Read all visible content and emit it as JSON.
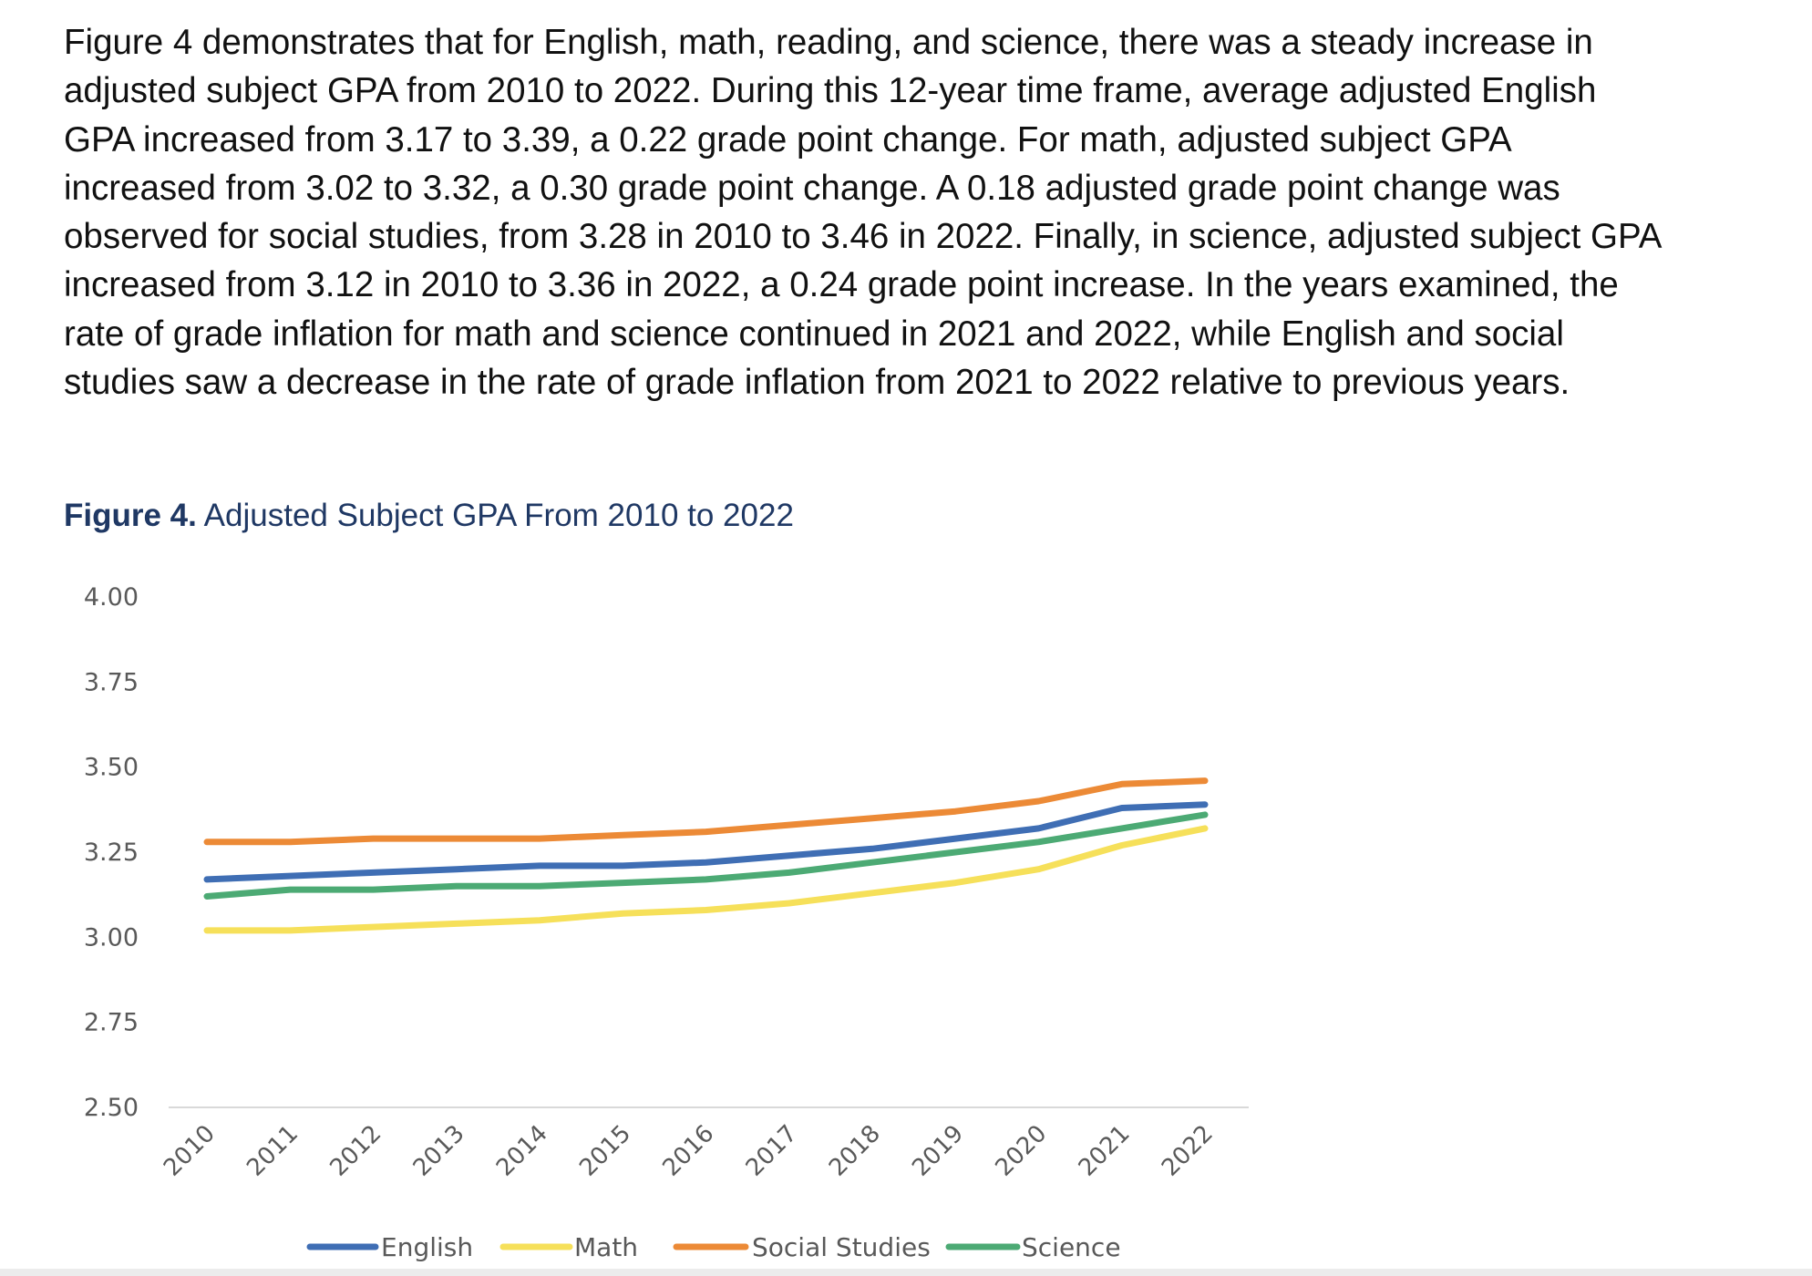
{
  "paragraph": {
    "text": "Figure 4 demonstrates that for English, math, reading, and science, there was a steady increase in adjusted subject GPA from 2010 to 2022. During this 12-year time frame, average adjusted English GPA increased from 3.17 to 3.39, a 0.22 grade point change. For math, adjusted subject GPA increased from 3.02 to 3.32, a 0.30 grade point change. A 0.18 adjusted grade point change was observed for social studies, from 3.28 in 2010 to 3.46 in 2022. Finally, in science, adjusted subject GPA increased from 3.12 in 2010 to 3.36 in 2022, a 0.24 grade point increase. In the years examined, the rate of grade inflation for math and science continued in 2021 and 2022, while English and social studies saw a decrease in the rate of grade inflation from 2021 to 2022 relative to previous years."
  },
  "figure": {
    "label": "Figure 4.",
    "title": " Adjusted Subject GPA From 2010 to 2022"
  },
  "chart_data": {
    "type": "line",
    "title": "Adjusted Subject GPA From 2010 to 2022",
    "xlabel": "",
    "ylabel": "",
    "categories": [
      "2010",
      "2011",
      "2012",
      "2013",
      "2014",
      "2015",
      "2016",
      "2017",
      "2018",
      "2019",
      "2020",
      "2021",
      "2022"
    ],
    "ylim": [
      2.5,
      4.0
    ],
    "yticks": [
      "4.00",
      "3.75",
      "3.50",
      "3.25",
      "3.00",
      "2.75",
      "2.50"
    ],
    "grid": false,
    "legend_position": "bottom",
    "series": [
      {
        "name": "English",
        "color": "#3f6eb4",
        "values": [
          3.17,
          3.18,
          3.19,
          3.2,
          3.21,
          3.21,
          3.22,
          3.24,
          3.26,
          3.29,
          3.32,
          3.38,
          3.39
        ]
      },
      {
        "name": "Math",
        "color": "#f6e05a",
        "values": [
          3.02,
          3.02,
          3.03,
          3.04,
          3.05,
          3.07,
          3.08,
          3.1,
          3.13,
          3.16,
          3.2,
          3.27,
          3.32
        ]
      },
      {
        "name": "Social Studies",
        "color": "#ec8a36",
        "values": [
          3.28,
          3.28,
          3.29,
          3.29,
          3.29,
          3.3,
          3.31,
          3.33,
          3.35,
          3.37,
          3.4,
          3.45,
          3.46
        ]
      },
      {
        "name": "Science",
        "color": "#4caa74",
        "values": [
          3.12,
          3.14,
          3.14,
          3.15,
          3.15,
          3.16,
          3.17,
          3.19,
          3.22,
          3.25,
          3.28,
          3.32,
          3.36
        ]
      }
    ]
  }
}
